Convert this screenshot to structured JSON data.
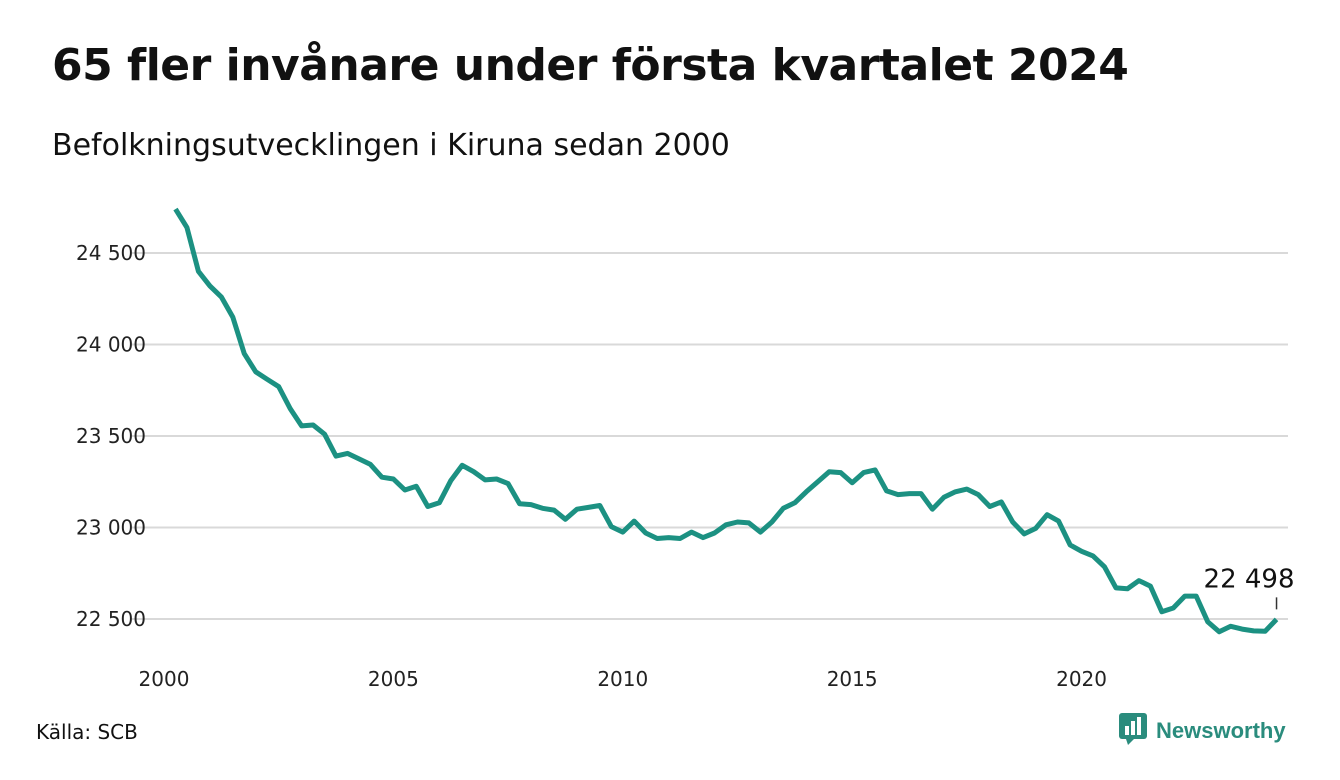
{
  "header": {
    "title": "65 fler invånare under första kvartalet 2024",
    "subtitle": "Befolkningsutvecklingen i Kiruna sedan 2000"
  },
  "footer": {
    "source": "Källa: SCB",
    "brand": "Newsworthy"
  },
  "colors": {
    "line": "#1c9182",
    "grid": "#d9d9d9",
    "brand": "#2a8c7d"
  },
  "icons": {
    "brand_logo": "chat-bar-chart-icon"
  },
  "chart_data": {
    "type": "line",
    "title": "65 fler invånare under första kvartalet 2024",
    "subtitle": "Befolkningsutvecklingen i Kiruna sedan 2000",
    "xlabel": "",
    "ylabel": "",
    "ylim": [
      22400,
      24750
    ],
    "xlim": [
      2000,
      2024.5
    ],
    "grid": true,
    "y_ticks": [
      22500,
      23000,
      23500,
      24000,
      24500
    ],
    "y_tick_labels": [
      "22 500",
      "23 000",
      "23 500",
      "24 000",
      "24 500"
    ],
    "x_ticks": [
      2000,
      2005,
      2010,
      2015,
      2020
    ],
    "x_tick_labels": [
      "2000",
      "2005",
      "2010",
      "2015",
      "2020"
    ],
    "end_label": "22 498",
    "series": [
      {
        "x": [
          2000.25,
          2000.5,
          2000.75,
          2001.0,
          2001.25,
          2001.5,
          2001.75,
          2002.0,
          2002.25,
          2002.5,
          2002.75,
          2003.0,
          2003.25,
          2003.5,
          2003.75,
          2004.0,
          2004.25,
          2004.5,
          2004.75,
          2005.0,
          2005.25,
          2005.5,
          2005.75,
          2006.0,
          2006.25,
          2006.5,
          2006.75,
          2007.0,
          2007.25,
          2007.5,
          2007.75,
          2008.0,
          2008.25,
          2008.5,
          2008.75,
          2009.0,
          2009.25,
          2009.5,
          2009.75,
          2010.0,
          2010.25,
          2010.5,
          2010.75,
          2011.0,
          2011.25,
          2011.5,
          2011.75,
          2012.0,
          2012.25,
          2012.5,
          2012.75,
          2013.0,
          2013.25,
          2013.5,
          2013.75,
          2014.0,
          2014.25,
          2014.5,
          2014.75,
          2015.0,
          2015.25,
          2015.5,
          2015.75,
          2016.0,
          2016.25,
          2016.5,
          2016.75,
          2017.0,
          2017.25,
          2017.5,
          2017.75,
          2018.0,
          2018.25,
          2018.5,
          2018.75,
          2019.0,
          2019.25,
          2019.5,
          2019.75,
          2020.0,
          2020.25,
          2020.5,
          2020.75,
          2021.0,
          2021.25,
          2021.5,
          2021.75,
          2022.0,
          2022.25,
          2022.5,
          2022.75,
          2023.0,
          2023.25,
          2023.5,
          2023.75,
          2024.0,
          2024.25
        ],
        "values": [
          24740,
          24640,
          24400,
          24320,
          24260,
          24150,
          23950,
          23850,
          23810,
          23770,
          23650,
          23555,
          23560,
          23510,
          23390,
          23405,
          23375,
          23345,
          23275,
          23265,
          23205,
          23225,
          23115,
          23135,
          23255,
          23340,
          23305,
          23260,
          23265,
          23240,
          23130,
          23125,
          23105,
          23095,
          23045,
          23100,
          23110,
          23120,
          23005,
          22975,
          23035,
          22970,
          22940,
          22945,
          22940,
          22975,
          22945,
          22970,
          23015,
          23030,
          23025,
          22975,
          23030,
          23105,
          23135,
          23195,
          23250,
          23305,
          23300,
          23245,
          23300,
          23315,
          23200,
          23180,
          23185,
          23185,
          23100,
          23165,
          23195,
          23210,
          23180,
          23115,
          23140,
          23030,
          22965,
          22995,
          23070,
          23035,
          22905,
          22870,
          22845,
          22785,
          22670,
          22665,
          22710,
          22680,
          22540,
          22560,
          22625,
          22625,
          22485,
          22430,
          22460,
          22445,
          22435,
          22433,
          22498
        ]
      }
    ]
  }
}
